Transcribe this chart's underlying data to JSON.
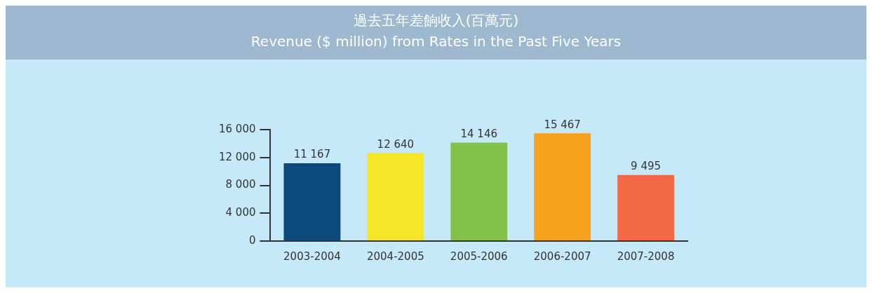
{
  "chart_data": {
    "type": "bar",
    "title": "過去五年差餉收入(百萬元)",
    "subtitle": "Revenue ($ million) from Rates in the Past Five Years",
    "categories": [
      "2003-2004",
      "2004-2005",
      "2005-2006",
      "2006-2007",
      "2007-2008"
    ],
    "values": [
      11167,
      12640,
      14146,
      15467,
      9495
    ],
    "value_labels": [
      "11 167",
      "12 640",
      "14 146",
      "15 467",
      "9 495"
    ],
    "colors": [
      "#0b4a7a",
      "#f5e627",
      "#82c24a",
      "#f6a21e",
      "#f26a45"
    ],
    "ylim": [
      0,
      16000
    ],
    "yticks": [
      0,
      {
        "value": 4000,
        "label": "4 000"
      },
      {
        "value": 8000,
        "label": "8 000"
      },
      {
        "value": 12000,
        "label": "12 000"
      },
      {
        "value": 16000,
        "label": "16 000"
      }
    ],
    "grid": false,
    "legend": false
  }
}
